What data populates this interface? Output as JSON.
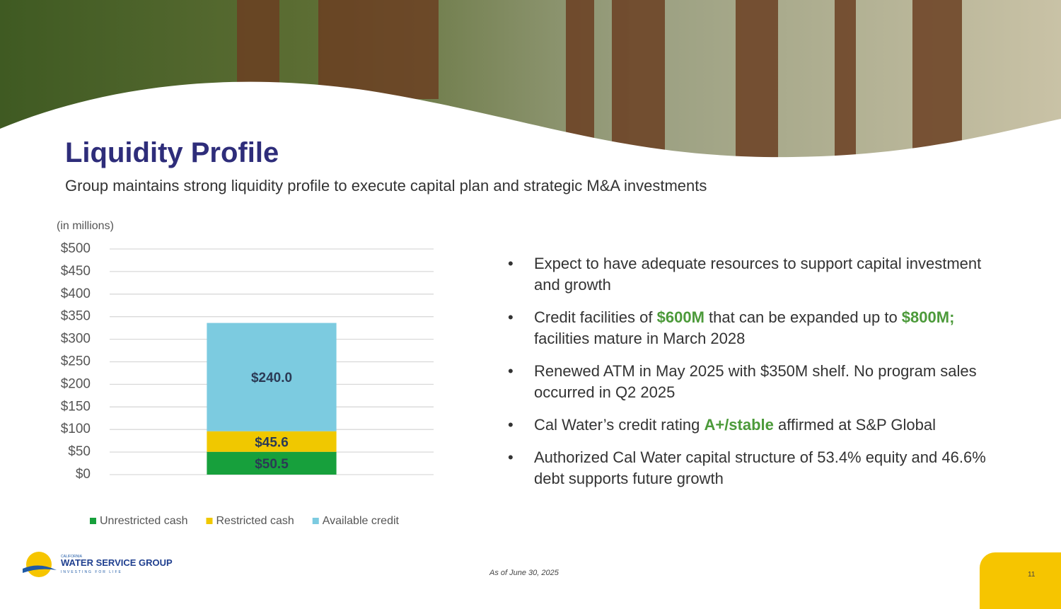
{
  "header": {
    "title": "Liquidity Profile",
    "subtitle": "Group maintains strong liquidity profile to execute capital plan and strategic M&A investments"
  },
  "chart_data": {
    "type": "stacked_bar",
    "y_label": "(in millions)",
    "categories": [
      null
    ],
    "series": [
      {
        "name": "Unrestricted cash",
        "color": "#17a03c",
        "values": [
          50.5
        ],
        "value_labels": [
          "$50.5"
        ]
      },
      {
        "name": "Restricted cash",
        "color": "#f0c800",
        "values": [
          45.6
        ],
        "value_labels": [
          "$45.6"
        ]
      },
      {
        "name": "Available credit",
        "color": "#7ccbe0",
        "values": [
          240.0
        ],
        "value_labels": [
          "$240.0"
        ]
      }
    ],
    "ylim": [
      0,
      500
    ],
    "yticks": [
      {
        "value": 0,
        "label": "$0"
      },
      {
        "value": 50,
        "label": "$50"
      },
      {
        "value": 100,
        "label": "$100"
      },
      {
        "value": 150,
        "label": "$150"
      },
      {
        "value": 200,
        "label": "$200"
      },
      {
        "value": 250,
        "label": "$250"
      },
      {
        "value": 300,
        "label": "$300"
      },
      {
        "value": 350,
        "label": "$350"
      },
      {
        "value": 400,
        "label": "$400"
      },
      {
        "value": 450,
        "label": "$450"
      },
      {
        "value": 500,
        "label": "$500"
      }
    ],
    "grid": true,
    "legend": "bottom"
  },
  "bullets": [
    {
      "parts": [
        {
          "text": "Expect to have adequate resources to support capital investment and growth"
        }
      ]
    },
    {
      "parts": [
        {
          "text": "Credit facilities of "
        },
        {
          "text": "$600M",
          "color": "#4c9a3a"
        },
        {
          "text": " that can be expanded up to "
        },
        {
          "text": "$800M;",
          "color": "#4c9a3a"
        },
        {
          "text": " facilities mature in March 2028"
        }
      ]
    },
    {
      "parts": [
        {
          "text": "Renewed ATM in May 2025 with $350M shelf. No program sales occurred in Q2 2025"
        }
      ]
    },
    {
      "parts": [
        {
          "text": "Cal Water’s credit rating "
        },
        {
          "text": "A+/stable",
          "color": "#4c9a3a"
        },
        {
          "text": " affirmed at S&P Global"
        }
      ]
    },
    {
      "parts": [
        {
          "text": "Authorized Cal Water capital structure of 53.4% equity and 46.6% debt supports future growth"
        }
      ]
    }
  ],
  "footer": {
    "note": "As of June 30, 2025",
    "page": "11",
    "logo": {
      "top": "CALIFORNIA",
      "name": "WATER SERVICE GROUP",
      "tagline": "INVESTING FOR LIFE"
    }
  }
}
